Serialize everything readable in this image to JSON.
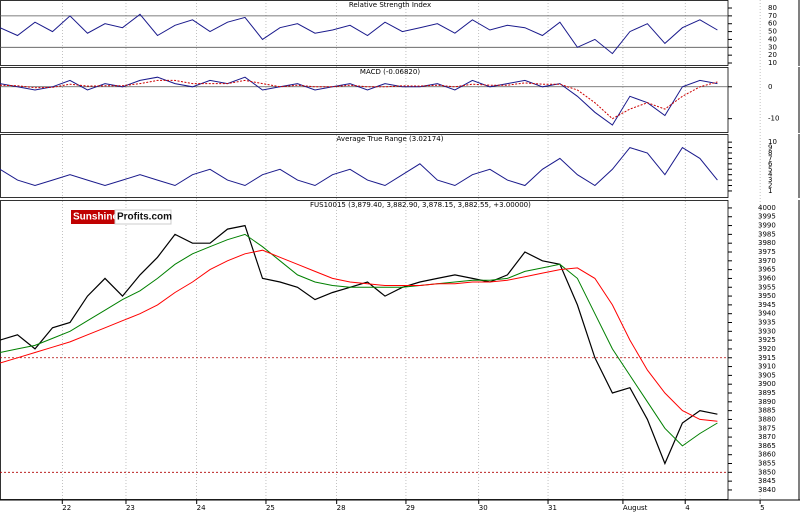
{
  "chart_data": [
    {
      "type": "line",
      "title": "Relative Strength Index",
      "x": [
        0,
        0.25,
        0.5,
        0.75,
        1,
        1.25,
        1.5,
        1.75,
        2,
        2.25,
        2.5,
        2.75,
        3,
        3.25,
        3.5,
        3.75,
        4,
        4.25,
        4.5,
        4.75,
        5,
        5.25,
        5.5,
        5.75,
        6,
        6.25,
        6.5,
        6.75,
        7,
        7.25,
        7.5,
        7.75,
        8,
        8.25,
        8.5,
        8.75,
        9,
        9.25,
        9.5,
        9.75,
        10,
        10.25
      ],
      "series": [
        {
          "color": "#1a1a8c",
          "values": [
            55,
            45,
            62,
            50,
            70,
            48,
            60,
            55,
            72,
            45,
            58,
            65,
            50,
            62,
            68,
            40,
            55,
            60,
            48,
            52,
            58,
            45,
            62,
            50,
            55,
            60,
            48,
            65,
            52,
            58,
            55,
            45,
            62,
            30,
            40,
            22,
            50,
            60,
            35,
            55,
            65,
            52
          ]
        }
      ],
      "ylim": [
        6.2,
        90.2
      ],
      "yticks": [
        10,
        20,
        30,
        40,
        50,
        60,
        70,
        80
      ],
      "hlines": [
        70,
        30
      ],
      "hline_style": "solid"
    },
    {
      "type": "line",
      "title": "MACD (-0.06820)",
      "x": [
        0,
        0.25,
        0.5,
        0.75,
        1,
        1.25,
        1.5,
        1.75,
        2,
        2.25,
        2.5,
        2.75,
        3,
        3.25,
        3.5,
        3.75,
        4,
        4.25,
        4.5,
        4.75,
        5,
        5.25,
        5.5,
        5.75,
        6,
        6.25,
        6.5,
        6.75,
        7,
        7.25,
        7.5,
        7.75,
        8,
        8.25,
        8.5,
        8.75,
        9,
        9.25,
        9.5,
        9.75,
        10,
        10.25
      ],
      "series": [
        {
          "color": "#1a1a8c",
          "values": [
            1,
            0,
            -1,
            0,
            2,
            -1,
            1,
            0,
            2,
            3,
            1,
            0,
            2,
            1,
            3,
            -1,
            0,
            1,
            -1,
            0,
            1,
            -1,
            1,
            0,
            0,
            1,
            -1,
            2,
            0,
            1,
            2,
            0,
            1,
            -3,
            -8,
            -12,
            -3,
            -5,
            -9,
            0,
            2,
            1
          ]
        },
        {
          "color": "#cc0000",
          "dashed": true,
          "values": [
            0.5,
            0.3,
            -0.3,
            -0.2,
            0.8,
            0.2,
            0.3,
            0.3,
            1,
            2,
            2,
            1,
            1,
            1,
            2,
            1,
            0,
            0.5,
            0,
            0,
            0.5,
            0,
            0,
            0.3,
            0.2,
            0.5,
            0,
            0.8,
            0.5,
            0.5,
            1.2,
            0.8,
            0.8,
            -1,
            -5,
            -10,
            -7,
            -5,
            -7,
            -3,
            0,
            1.5
          ]
        }
      ],
      "ylim": [
        -14.5,
        6.2
      ],
      "yticks": [
        -10,
        0
      ],
      "hlines": [
        0
      ],
      "hline_style": "solid"
    },
    {
      "type": "line",
      "title": "Average True Range (3.02174)",
      "x": [
        0,
        0.25,
        0.5,
        0.75,
        1,
        1.25,
        1.5,
        1.75,
        2,
        2.25,
        2.5,
        2.75,
        3,
        3.25,
        3.5,
        3.75,
        4,
        4.25,
        4.5,
        4.75,
        5,
        5.25,
        5.5,
        5.75,
        6,
        6.25,
        6.5,
        6.75,
        7,
        7.25,
        7.5,
        7.75,
        8,
        8.25,
        8.5,
        8.75,
        9,
        9.25,
        9.5,
        9.75,
        10,
        10.25
      ],
      "series": [
        {
          "color": "#1a1a8c",
          "values": [
            5,
            3,
            2,
            3,
            4,
            3,
            2,
            3,
            4,
            3,
            2,
            4,
            5,
            3,
            2,
            4,
            5,
            3,
            2,
            4,
            5,
            3,
            2,
            4,
            6,
            3,
            2,
            4,
            5,
            3,
            2,
            5,
            7,
            4,
            2,
            5,
            9,
            8,
            4,
            9,
            7,
            3
          ]
        }
      ],
      "ylim": [
        -0.3,
        11.5
      ],
      "yticks": [
        1,
        2,
        3,
        4,
        5,
        6,
        7,
        8,
        9,
        10
      ]
    },
    {
      "type": "line",
      "title": "FUS10015 (3,879.40, 3,882.90, 3,878.15, 3,882.55, +3.00000)",
      "logo": [
        "Sunshine",
        "Profits.com"
      ],
      "x": [
        0,
        0.25,
        0.5,
        0.75,
        1,
        1.25,
        1.5,
        1.75,
        2,
        2.25,
        2.5,
        2.75,
        3,
        3.25,
        3.5,
        3.75,
        4,
        4.25,
        4.5,
        4.75,
        5,
        5.25,
        5.5,
        5.75,
        6,
        6.25,
        6.5,
        6.75,
        7,
        7.25,
        7.5,
        7.75,
        8,
        8.25,
        8.5,
        8.75,
        9,
        9.25,
        9.5,
        9.75,
        10,
        10.25
      ],
      "series": [
        {
          "color": "#000000",
          "values": [
            3925,
            3928,
            3920,
            3932,
            3935,
            3950,
            3960,
            3950,
            3962,
            3972,
            3985,
            3980,
            3980,
            3988,
            3990,
            3960,
            3958,
            3955,
            3948,
            3952,
            3955,
            3958,
            3950,
            3955,
            3958,
            3960,
            3962,
            3960,
            3958,
            3962,
            3975,
            3970,
            3968,
            3945,
            3915,
            3895,
            3898,
            3880,
            3855,
            3878,
            3885,
            3883
          ]
        },
        {
          "color": "#008000",
          "values": [
            3918,
            3920,
            3922,
            3926,
            3930,
            3936,
            3942,
            3948,
            3953,
            3960,
            3968,
            3974,
            3978,
            3982,
            3985,
            3978,
            3970,
            3962,
            3958,
            3956,
            3955,
            3955,
            3955,
            3955,
            3956,
            3957,
            3958,
            3959,
            3959,
            3960,
            3964,
            3966,
            3968,
            3960,
            3940,
            3920,
            3905,
            3890,
            3875,
            3865,
            3872,
            3878
          ]
        },
        {
          "color": "#ff0000",
          "values": [
            3912,
            3915,
            3918,
            3921,
            3924,
            3928,
            3932,
            3936,
            3940,
            3945,
            3952,
            3958,
            3965,
            3970,
            3974,
            3976,
            3972,
            3968,
            3964,
            3960,
            3958,
            3957,
            3956,
            3956,
            3956,
            3957,
            3957,
            3958,
            3958,
            3959,
            3961,
            3963,
            3965,
            3966,
            3960,
            3945,
            3925,
            3908,
            3895,
            3885,
            3880,
            3879
          ]
        }
      ],
      "ylim": [
        3834.3,
        4004.5
      ],
      "yticks": [
        3840,
        3845,
        3850,
        3855,
        3860,
        3865,
        3870,
        3875,
        3880,
        3885,
        3890,
        3895,
        3900,
        3905,
        3910,
        3915,
        3920,
        3925,
        3930,
        3935,
        3940,
        3945,
        3950,
        3955,
        3960,
        3965,
        3970,
        3975,
        3980,
        3985,
        3990,
        3995,
        4000
      ],
      "hlines": [
        3915,
        3850
      ],
      "hline_style": "dashed",
      "xlim": [
        0,
        11.43
      ],
      "xticks": [
        {
          "value": 0.89,
          "label": "22"
        },
        {
          "value": 1.8,
          "label": "23"
        },
        {
          "value": 2.81,
          "label": "24"
        },
        {
          "value": 3.8,
          "label": "25"
        },
        {
          "value": 4.81,
          "label": "28"
        },
        {
          "value": 5.8,
          "label": "29"
        },
        {
          "value": 6.84,
          "label": "30"
        },
        {
          "value": 7.83,
          "label": "31"
        },
        {
          "value": 8.9,
          "label": "August"
        },
        {
          "value": 9.79,
          "label": "4"
        },
        {
          "value": 10.86,
          "label": "5"
        }
      ],
      "grid": true
    }
  ]
}
